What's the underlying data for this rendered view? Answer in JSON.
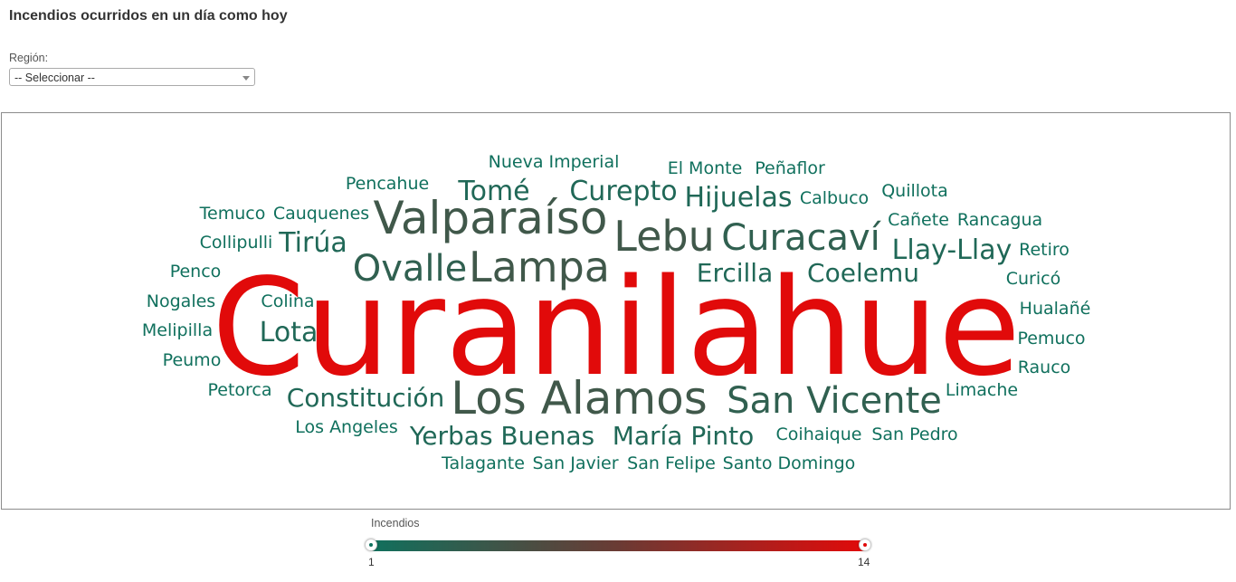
{
  "page": {
    "title": "Incendios ocurridos en un día como hoy"
  },
  "filter": {
    "label": "Región:",
    "selected": "-- Seleccionar --"
  },
  "legend": {
    "title": "Incendios",
    "min": "1",
    "max": "14",
    "color_min": "#10705d",
    "color_max": "#e10a0a"
  },
  "chart_data": {
    "type": "wordcloud",
    "value_label": "Incendios",
    "value_range": [
      1,
      14
    ],
    "color_scale": [
      "#10705d",
      "#e10a0a"
    ],
    "words": [
      {
        "text": "Curanilahue",
        "value": 14
      },
      {
        "text": "Lebu",
        "value": 4
      },
      {
        "text": "Valparaíso",
        "value": 4
      },
      {
        "text": "Lampa",
        "value": 4
      },
      {
        "text": "Los Alamos",
        "value": 4
      },
      {
        "text": "Curacaví",
        "value": 3
      },
      {
        "text": "Ovalle",
        "value": 3
      },
      {
        "text": "San Vicente",
        "value": 3
      },
      {
        "text": "Llay-Llay",
        "value": 2
      },
      {
        "text": "Curepto",
        "value": 2
      },
      {
        "text": "Hijuelas",
        "value": 2
      },
      {
        "text": "Tomé",
        "value": 2
      },
      {
        "text": "Ercilla",
        "value": 2
      },
      {
        "text": "Coelemu",
        "value": 2
      },
      {
        "text": "Constitución",
        "value": 2
      },
      {
        "text": "Yerbas Buenas",
        "value": 2
      },
      {
        "text": "María Pinto",
        "value": 2
      },
      {
        "text": "Tirúa",
        "value": 2
      },
      {
        "text": "Lota",
        "value": 2
      },
      {
        "text": "Nueva Imperial",
        "value": 1
      },
      {
        "text": "El Monte",
        "value": 1
      },
      {
        "text": "Peñaflor",
        "value": 1
      },
      {
        "text": "Pencahue",
        "value": 1
      },
      {
        "text": "Calbuco",
        "value": 1
      },
      {
        "text": "Quillota",
        "value": 1
      },
      {
        "text": "Temuco",
        "value": 1
      },
      {
        "text": "Cauquenes",
        "value": 1
      },
      {
        "text": "Cañete",
        "value": 1
      },
      {
        "text": "Rancagua",
        "value": 1
      },
      {
        "text": "Collipulli",
        "value": 1
      },
      {
        "text": "Retiro",
        "value": 1
      },
      {
        "text": "Penco",
        "value": 1
      },
      {
        "text": "Curicó",
        "value": 1
      },
      {
        "text": "Nogales",
        "value": 1
      },
      {
        "text": "Colina",
        "value": 1
      },
      {
        "text": "Hualañé",
        "value": 1
      },
      {
        "text": "Melipilla",
        "value": 1
      },
      {
        "text": "Pemuco",
        "value": 1
      },
      {
        "text": "Peumo",
        "value": 1
      },
      {
        "text": "Rauco",
        "value": 1
      },
      {
        "text": "Petorca",
        "value": 1
      },
      {
        "text": "Limache",
        "value": 1
      },
      {
        "text": "Los Angeles",
        "value": 1
      },
      {
        "text": "Coihaique",
        "value": 1
      },
      {
        "text": "San Pedro",
        "value": 1
      },
      {
        "text": "Talagante",
        "value": 1
      },
      {
        "text": "San Javier",
        "value": 1
      },
      {
        "text": "San Felipe",
        "value": 1
      },
      {
        "text": "Santo Domingo",
        "value": 1
      }
    ]
  }
}
